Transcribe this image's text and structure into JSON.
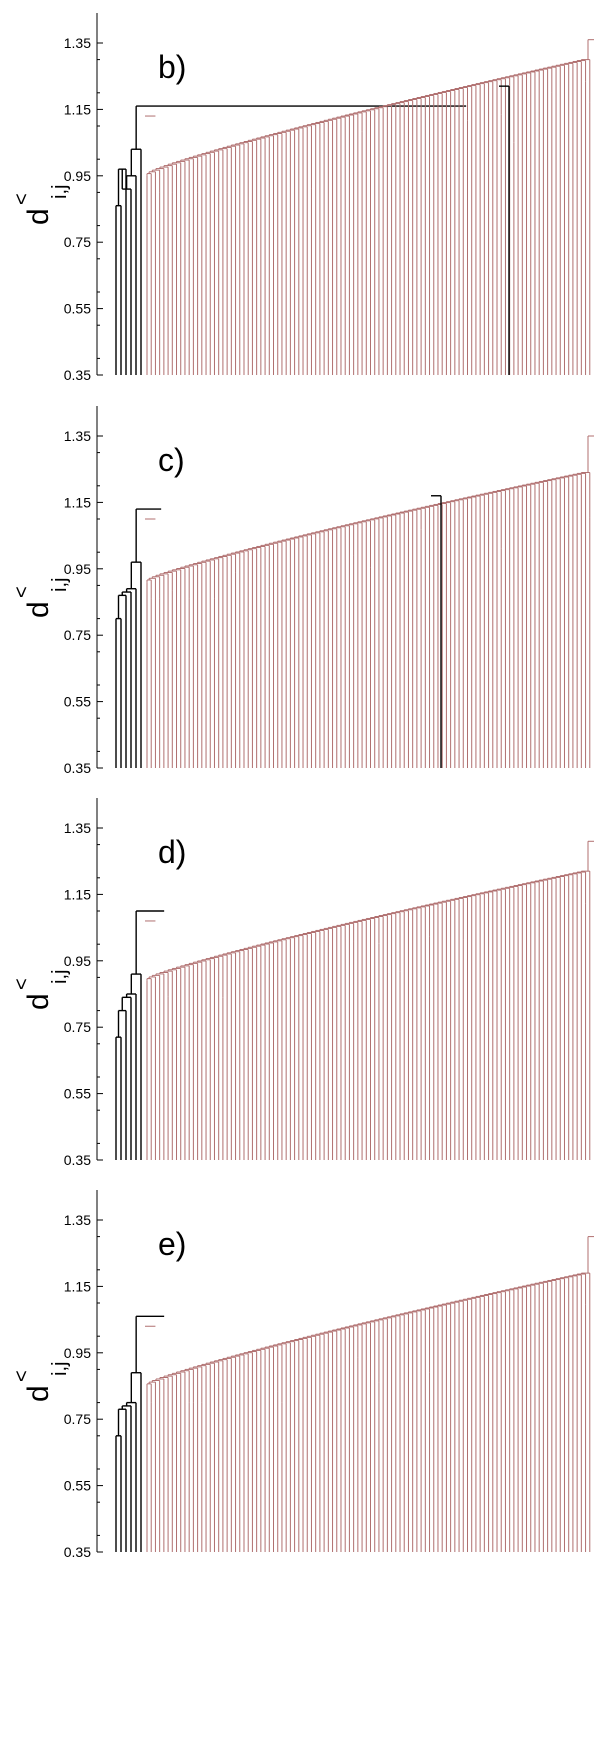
{
  "colors": {
    "axis": "#000000",
    "black_cluster": "#000000",
    "red_cluster": "#b06f6f"
  },
  "chart_data": [
    {
      "type": "dendrogram",
      "panel_label": "b)",
      "ylabel": "d",
      "ylabel_hat": "<",
      "ylabel_sub": "i,j",
      "yticks": [
        "1.35",
        "1.15",
        "0.95",
        "0.75",
        "0.55",
        "0.35"
      ],
      "ylim": [
        0.35,
        1.35
      ],
      "black_leaves": 6,
      "black_merges": [
        0.86,
        0.97,
        0.91,
        0.95,
        1.03
      ],
      "black_root": 1.16,
      "black_detached_merge": 1.22,
      "red_min": 0.95,
      "red_max": 1.3,
      "red_top": 1.36
    },
    {
      "type": "dendrogram",
      "panel_label": "c)",
      "ylabel": "d",
      "ylabel_hat": "<",
      "ylabel_sub": "i,j",
      "yticks": [
        "1.35",
        "1.15",
        "0.95",
        "0.75",
        "0.55",
        "0.35"
      ],
      "ylim": [
        0.35,
        1.35
      ],
      "black_leaves": 6,
      "black_merges": [
        0.8,
        0.87,
        0.88,
        0.89,
        0.97
      ],
      "black_root": 1.13,
      "black_detached_merge": 1.17,
      "red_min": 0.91,
      "red_max": 1.24,
      "red_top": 1.35
    },
    {
      "type": "dendrogram",
      "panel_label": "d)",
      "ylabel": "d",
      "ylabel_hat": "<",
      "ylabel_sub": "i,j",
      "yticks": [
        "1.35",
        "1.15",
        "0.95",
        "0.75",
        "0.55",
        "0.35"
      ],
      "ylim": [
        0.35,
        1.35
      ],
      "black_leaves": 6,
      "black_merges": [
        0.72,
        0.8,
        0.84,
        0.85,
        0.91
      ],
      "black_root": 1.1,
      "black_detached_merge": null,
      "red_min": 0.89,
      "red_max": 1.22,
      "red_top": 1.31
    },
    {
      "type": "dendrogram",
      "panel_label": "e)",
      "ylabel": "d",
      "ylabel_hat": "<",
      "ylabel_sub": "i,j",
      "yticks": [
        "1.35",
        "1.15",
        "0.95",
        "0.75",
        "0.55",
        "0.35"
      ],
      "ylim": [
        0.35,
        1.35
      ],
      "black_leaves": 6,
      "black_merges": [
        0.7,
        0.78,
        0.79,
        0.8,
        0.89
      ],
      "black_root": 1.06,
      "black_detached_merge": null,
      "red_min": 0.85,
      "red_max": 1.19,
      "red_top": 1.3
    }
  ]
}
